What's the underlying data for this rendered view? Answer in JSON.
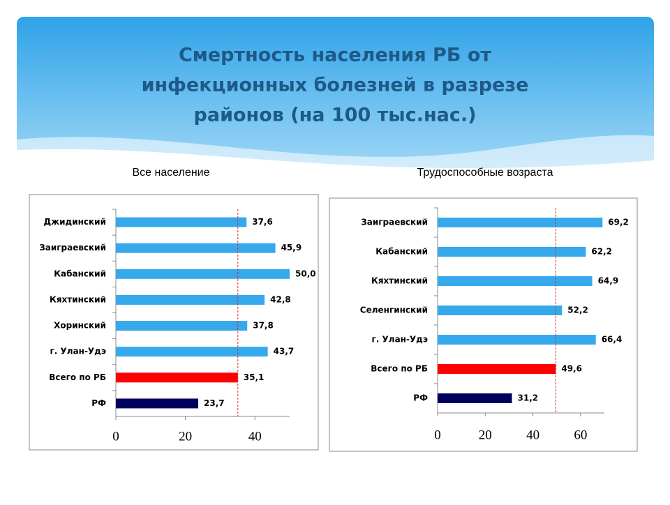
{
  "title": "Смертность населения РБ от инфекционных болезней в разрезе районов (на 100 тыс.нас.)",
  "chart_data": [
    {
      "type": "barh",
      "title": "Все население",
      "categories": [
        "Джидинский",
        "Заиграевский",
        "Кабанский",
        "Кяхтинский",
        "Хоринский",
        "г. Улан-Удэ",
        "Всего по РБ",
        "РФ"
      ],
      "values": [
        37.6,
        45.9,
        50.0,
        42.8,
        37.8,
        43.7,
        35.1,
        23.7
      ],
      "value_labels": [
        "37,6",
        "45,9",
        "50,0",
        "42,8",
        "37,8",
        "43,7",
        "35,1",
        "23,7"
      ],
      "colors": [
        "#35a9ec",
        "#35a9ec",
        "#35a9ec",
        "#35a9ec",
        "#35a9ec",
        "#35a9ec",
        "#ff0000",
        "#00005e"
      ],
      "xlim": [
        0,
        50
      ],
      "xticks": [
        0,
        20,
        40
      ]
    },
    {
      "type": "barh",
      "title": "Трудоспособные возраста",
      "categories": [
        "Заиграевский",
        "Кабанский",
        "Кяхтинский",
        "Селенгинский",
        "г. Улан-Удэ",
        "Всего по РБ",
        "РФ"
      ],
      "values": [
        69.2,
        62.2,
        64.9,
        52.2,
        66.4,
        49.6,
        31.2
      ],
      "value_labels": [
        "69,2",
        "62,2",
        "64,9",
        "52,2",
        "66,4",
        "49,6",
        "31,2"
      ],
      "colors": [
        "#35a9ec",
        "#35a9ec",
        "#35a9ec",
        "#35a9ec",
        "#35a9ec",
        "#ff0000",
        "#00005e"
      ],
      "xlim": [
        0,
        70
      ],
      "xticks": [
        0,
        20,
        40,
        60
      ]
    }
  ]
}
